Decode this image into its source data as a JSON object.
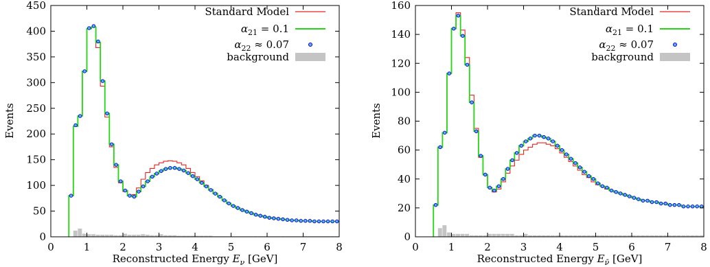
{
  "chart_data": [
    {
      "type": "line",
      "xlabel": "Reconstructed Energy E_ν [GeV]",
      "xlabel_main": "Reconstructed Energy ",
      "xlabel_var": "E",
      "xlabel_sub": "ν",
      "xlabel_unit": " [GeV]",
      "ylabel": "Events",
      "xlim": [
        0,
        8
      ],
      "ylim": [
        0,
        450
      ],
      "xticks": [
        "0",
        "1",
        "2",
        "3",
        "4",
        "5",
        "6",
        "7",
        "8"
      ],
      "yticks": [
        "0",
        "50",
        "100",
        "150",
        "200",
        "250",
        "300",
        "350",
        "400",
        "450"
      ],
      "legend_position": "top-right",
      "legend": [
        {
          "label": "Standard Model",
          "color": "#e8211d",
          "style": "step"
        },
        {
          "label": "α21 = 0.1",
          "color": "#22d611",
          "style": "step"
        },
        {
          "label": "α22 ≈ 0.07",
          "color": "#0000e0",
          "style": "points"
        },
        {
          "label": "background",
          "color": "#c4c4c4",
          "style": "box"
        }
      ],
      "bin_edges": [
        0.5,
        0.625,
        0.75,
        0.875,
        1.0,
        1.125,
        1.25,
        1.375,
        1.5,
        1.625,
        1.75,
        1.875,
        2.0,
        2.125,
        2.25,
        2.375,
        2.5,
        2.625,
        2.75,
        2.875,
        3.0,
        3.125,
        3.25,
        3.375,
        3.5,
        3.625,
        3.75,
        3.875,
        4.0,
        4.125,
        4.25,
        4.375,
        4.5,
        4.625,
        4.75,
        4.875,
        5.0,
        5.125,
        5.25,
        5.375,
        5.5,
        5.625,
        5.75,
        5.875,
        6.0,
        6.125,
        6.25,
        6.375,
        6.5,
        6.625,
        6.75,
        6.875,
        7.0,
        7.125,
        7.25,
        7.375,
        7.5,
        7.625,
        7.75,
        7.875,
        8.0
      ],
      "series": [
        {
          "name": "Standard Model",
          "color": "#e8211d",
          "values": [
            80,
            215,
            235,
            322,
            405,
            408,
            368,
            293,
            233,
            175,
            135,
            105,
            88,
            80,
            82,
            95,
            112,
            125,
            133,
            140,
            144,
            147,
            148,
            147,
            144,
            140,
            133,
            125,
            117,
            109,
            100,
            92,
            85,
            78,
            71,
            65,
            60,
            56,
            52,
            49,
            46,
            43,
            41,
            39,
            37,
            36,
            35,
            34,
            33,
            32,
            32,
            31,
            31,
            31,
            30,
            30,
            30,
            30,
            30,
            30
          ]
        },
        {
          "name": "α21 = 0.1",
          "color": "#22d611",
          "values": [
            80,
            215,
            235,
            322,
            405,
            408,
            378,
            303,
            240,
            180,
            140,
            108,
            90,
            80,
            78,
            88,
            98,
            108,
            117,
            123,
            128,
            132,
            134,
            134,
            132,
            129,
            124,
            118,
            112,
            105,
            98,
            91,
            84,
            78,
            71,
            65,
            60,
            56,
            52,
            49,
            46,
            43,
            41,
            39,
            37,
            36,
            35,
            34,
            33,
            32,
            32,
            31,
            31,
            31,
            30,
            30,
            30,
            30,
            30,
            30
          ]
        },
        {
          "name": "α22 ≈ 0.07",
          "color": "#0000e0",
          "values": [
            80,
            217,
            235,
            322,
            406,
            410,
            380,
            303,
            240,
            180,
            140,
            108,
            90,
            80,
            78,
            88,
            98,
            108,
            117,
            123,
            128,
            132,
            134,
            134,
            132,
            129,
            124,
            118,
            112,
            105,
            98,
            91,
            84,
            78,
            71,
            65,
            60,
            56,
            52,
            49,
            46,
            43,
            41,
            39,
            37,
            36,
            35,
            34,
            33,
            32,
            32,
            31,
            31,
            31,
            30,
            30,
            30,
            30,
            30,
            30
          ]
        },
        {
          "name": "background",
          "color": "#c4c4c4",
          "values": [
            0,
            12,
            16,
            6,
            5,
            5,
            4,
            4,
            4,
            4,
            3,
            3,
            6,
            4,
            4,
            4,
            5,
            4,
            3,
            3,
            5,
            3,
            3,
            3,
            2,
            2,
            2,
            2,
            2,
            2,
            2,
            2,
            1,
            1,
            1,
            1,
            1,
            1,
            1,
            1,
            1,
            1,
            1,
            1,
            1,
            1,
            1,
            1,
            1,
            1,
            1,
            1,
            1,
            1,
            1,
            1,
            1,
            1,
            1,
            1
          ]
        }
      ]
    },
    {
      "type": "line",
      "xlabel": "Reconstructed Energy E_ν̄ [GeV]",
      "xlabel_main": "Reconstructed Energy ",
      "xlabel_var": "E",
      "xlabel_sub": "ν̄",
      "xlabel_unit": " [GeV]",
      "ylabel": "Events",
      "xlim": [
        0,
        8
      ],
      "ylim": [
        0,
        160
      ],
      "xticks": [
        "0",
        "1",
        "2",
        "3",
        "4",
        "5",
        "6",
        "7",
        "8"
      ],
      "yticks": [
        "0",
        "20",
        "40",
        "60",
        "80",
        "100",
        "120",
        "140",
        "160"
      ],
      "legend_position": "top-right",
      "legend": [
        {
          "label": "Standard Model",
          "color": "#e8211d",
          "style": "step"
        },
        {
          "label": "α21 = 0.1",
          "color": "#22d611",
          "style": "step"
        },
        {
          "label": "α22 ≈ 0.07",
          "color": "#0000e0",
          "style": "points"
        },
        {
          "label": "background",
          "color": "#c4c4c4",
          "style": "box"
        }
      ],
      "bin_edges": [
        0.5,
        0.625,
        0.75,
        0.875,
        1.0,
        1.125,
        1.25,
        1.375,
        1.5,
        1.625,
        1.75,
        1.875,
        2.0,
        2.125,
        2.25,
        2.375,
        2.5,
        2.625,
        2.75,
        2.875,
        3.0,
        3.125,
        3.25,
        3.375,
        3.5,
        3.625,
        3.75,
        3.875,
        4.0,
        4.125,
        4.25,
        4.375,
        4.5,
        4.625,
        4.75,
        4.875,
        5.0,
        5.125,
        5.25,
        5.375,
        5.5,
        5.625,
        5.75,
        5.875,
        6.0,
        6.125,
        6.25,
        6.375,
        6.5,
        6.625,
        6.75,
        6.875,
        7.0,
        7.125,
        7.25,
        7.375,
        7.5,
        7.625,
        7.75,
        7.875,
        8.0
      ],
      "series": [
        {
          "name": "Standard Model",
          "color": "#e8211d",
          "values": [
            22,
            62,
            72,
            113,
            144,
            155,
            143,
            124,
            98,
            75,
            55,
            43,
            34,
            31,
            33,
            38,
            44,
            49,
            53,
            57,
            60,
            62,
            64,
            65,
            65,
            64,
            63,
            61,
            58,
            55,
            52,
            49,
            46,
            43,
            41,
            38,
            36,
            35,
            33,
            32,
            31,
            30,
            29,
            28,
            27,
            26,
            25,
            25,
            24,
            24,
            23,
            23,
            22,
            22,
            22,
            21,
            21,
            21,
            21,
            21
          ]
        },
        {
          "name": "α21 = 0.1",
          "color": "#22d611",
          "values": [
            22,
            62,
            72,
            113,
            144,
            153,
            139,
            119,
            93,
            73,
            56,
            43,
            34,
            32,
            35,
            40,
            47,
            53,
            58,
            63,
            66,
            68,
            70,
            70,
            69,
            68,
            66,
            63,
            60,
            57,
            54,
            51,
            48,
            45,
            42,
            40,
            37,
            35,
            34,
            32,
            31,
            30,
            29,
            28,
            27,
            26,
            25,
            25,
            24,
            24,
            23,
            23,
            22,
            22,
            22,
            21,
            21,
            21,
            21,
            21
          ]
        },
        {
          "name": "α22 ≈ 0.07",
          "color": "#0000e0",
          "values": [
            22,
            62,
            72,
            113,
            144,
            153,
            139,
            119,
            93,
            73,
            56,
            43,
            34,
            32,
            35,
            40,
            47,
            53,
            58,
            63,
            66,
            68,
            70,
            70,
            69,
            68,
            66,
            63,
            60,
            57,
            54,
            51,
            48,
            45,
            42,
            40,
            37,
            35,
            34,
            32,
            31,
            30,
            29,
            28,
            27,
            26,
            25,
            25,
            24,
            24,
            23,
            23,
            22,
            22,
            22,
            21,
            21,
            21,
            21,
            21
          ]
        },
        {
          "name": "background",
          "color": "#c4c4c4",
          "values": [
            0,
            6,
            8,
            3,
            2,
            2,
            2,
            2,
            1,
            1,
            1,
            1,
            2,
            2,
            2,
            2,
            2,
            2,
            1,
            1,
            2,
            1,
            1,
            1,
            1,
            1,
            1,
            1,
            1,
            1,
            1,
            1,
            1,
            1,
            1,
            1,
            1,
            1,
            1,
            1,
            1,
            1,
            1,
            1,
            1,
            1,
            1,
            1,
            1,
            1,
            1,
            1,
            1,
            1,
            1,
            1,
            1,
            1,
            1,
            1
          ]
        }
      ]
    }
  ]
}
